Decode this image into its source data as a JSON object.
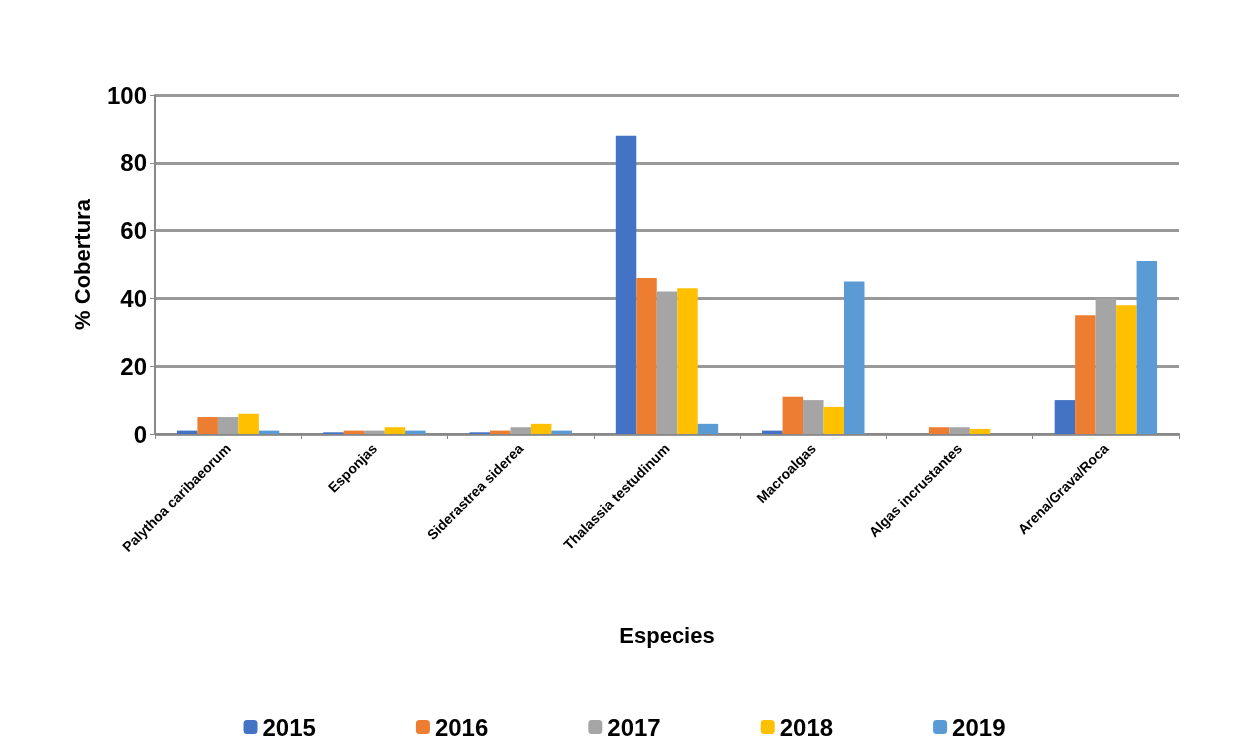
{
  "chart_data": {
    "type": "bar",
    "xlabel": "Especies",
    "ylabel": "% Cobertura",
    "categories": [
      "Palythoa caribaeorum",
      "Esponjas",
      "Siderastrea siderea",
      "Thalassia testudinum",
      "Macroalgas",
      "Algas incrustantes",
      "Arena/Grava/Roca"
    ],
    "series": [
      {
        "name": "2015",
        "color": "#4472c4",
        "values": [
          1,
          0.5,
          0.5,
          88,
          1,
          0,
          10
        ]
      },
      {
        "name": "2016",
        "color": "#ed7d31",
        "values": [
          5,
          1,
          1,
          46,
          11,
          2,
          35
        ]
      },
      {
        "name": "2017",
        "color": "#a5a5a5",
        "values": [
          5,
          1,
          2,
          42,
          10,
          2,
          40
        ]
      },
      {
        "name": "2018",
        "color": "#ffc000",
        "values": [
          6,
          2,
          3,
          43,
          8,
          1.5,
          38
        ]
      },
      {
        "name": "2019",
        "color": "#5b9bd5",
        "values": [
          1,
          1,
          1,
          3,
          45,
          0,
          51
        ]
      }
    ],
    "ylim": [
      0,
      100
    ],
    "yticks": [
      0,
      20,
      40,
      60,
      80,
      100
    ],
    "grid": "y",
    "legend": "bottom"
  }
}
